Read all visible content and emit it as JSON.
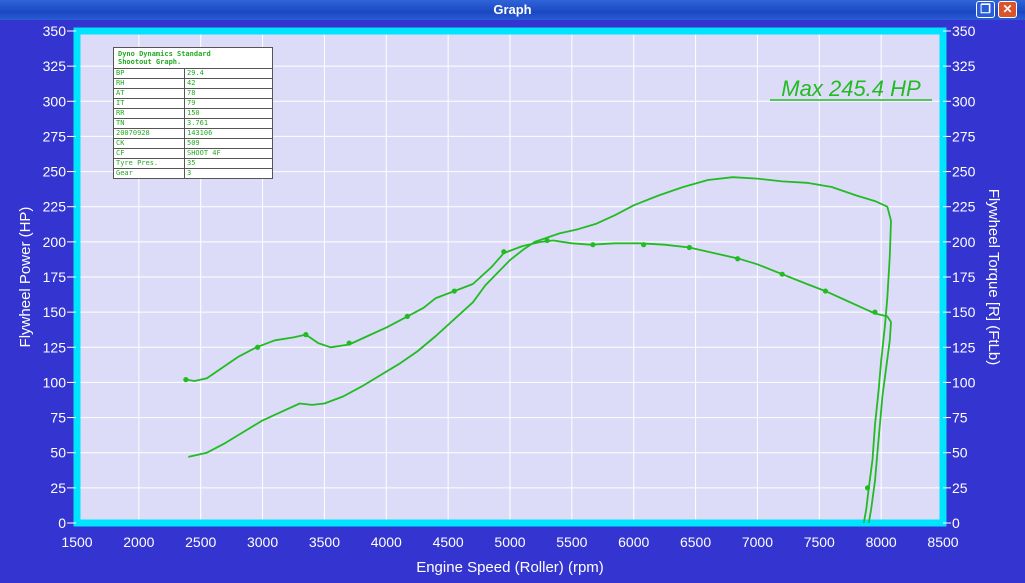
{
  "window": {
    "title": "Graph",
    "restore_icon": "restore-icon",
    "close_icon": "close-icon"
  },
  "colors": {
    "frame": "#3434d0",
    "plot_bg": "#dcdcf8",
    "plot_border": "#00e5ff",
    "curve": "#22bb22",
    "axis_text": "#ffffff",
    "title_bar": "#1f4fc9"
  },
  "annotation": "Max 245.4 HP",
  "info_table": {
    "header_line1": "Dyno Dynamics Standard",
    "header_line2": "Shootout Graph.",
    "rows": [
      {
        "key": "BP",
        "value": "29.4"
      },
      {
        "key": "RH",
        "value": "42"
      },
      {
        "key": "AT",
        "value": "78"
      },
      {
        "key": "IT",
        "value": "79"
      },
      {
        "key": "RR",
        "value": "150"
      },
      {
        "key": "TN",
        "value": "3.761"
      },
      {
        "key": "20070928",
        "value": "143106"
      },
      {
        "key": "CK",
        "value": "509"
      },
      {
        "key": "CF",
        "value": "SHOOT 4F"
      },
      {
        "key": "Tyre Pres.",
        "value": "35"
      },
      {
        "key": "Gear",
        "value": "3"
      }
    ]
  },
  "chart_data": {
    "type": "line",
    "xlabel": "Engine Speed (Roller) (rpm)",
    "ylabel": "Flywheel Power (HP)",
    "y2label": "Flywheel Torque [R] (FtLb)",
    "xlim": [
      1500,
      8500
    ],
    "ylim": [
      0,
      350
    ],
    "y2lim": [
      0,
      350
    ],
    "x_ticks": [
      "1500",
      "2000",
      "2500",
      "3000",
      "3500",
      "4000",
      "4500",
      "5000",
      "5500",
      "6000",
      "6500",
      "7000",
      "7500",
      "8000",
      "8500"
    ],
    "y_ticks": [
      "0",
      "25",
      "50",
      "75",
      "100",
      "125",
      "150",
      "175",
      "200",
      "225",
      "250",
      "275",
      "300",
      "325",
      "350"
    ],
    "y2_ticks": [
      "0",
      "25",
      "50",
      "75",
      "100",
      "125",
      "150",
      "175",
      "200",
      "225",
      "250",
      "275",
      "300",
      "325",
      "350"
    ],
    "grid": true,
    "series": [
      {
        "values_xy": [
          [
            2400,
            47
          ],
          [
            2550,
            50
          ],
          [
            2700,
            57
          ],
          [
            2850,
            65
          ],
          [
            3000,
            73
          ],
          [
            3150,
            79
          ],
          [
            3300,
            85
          ],
          [
            3400,
            84
          ],
          [
            3500,
            85
          ],
          [
            3650,
            90
          ],
          [
            3800,
            97
          ],
          [
            3950,
            105
          ],
          [
            4100,
            113
          ],
          [
            4250,
            122
          ],
          [
            4400,
            133
          ],
          [
            4550,
            145
          ],
          [
            4700,
            157
          ],
          [
            4800,
            169
          ],
          [
            4900,
            178
          ],
          [
            5000,
            187
          ],
          [
            5100,
            194
          ],
          [
            5200,
            200
          ],
          [
            5300,
            203
          ],
          [
            5400,
            206
          ],
          [
            5550,
            209
          ],
          [
            5700,
            213
          ],
          [
            5850,
            219
          ],
          [
            6000,
            226
          ],
          [
            6200,
            233
          ],
          [
            6400,
            239
          ],
          [
            6600,
            244
          ],
          [
            6800,
            246
          ],
          [
            7000,
            245
          ],
          [
            7200,
            243
          ],
          [
            7400,
            242
          ],
          [
            7600,
            239
          ],
          [
            7800,
            233
          ],
          [
            7950,
            229
          ],
          [
            8050,
            225
          ],
          [
            8080,
            215
          ],
          [
            8070,
            190
          ],
          [
            8050,
            160
          ],
          [
            8030,
            140
          ],
          [
            8000,
            115
          ],
          [
            7980,
            95
          ],
          [
            7950,
            70
          ],
          [
            7930,
            45
          ],
          [
            7900,
            25
          ],
          [
            7880,
            10
          ],
          [
            7860,
            0
          ]
        ],
        "markers": []
      },
      {
        "values_xy": [
          [
            2380,
            102
          ],
          [
            2450,
            101
          ],
          [
            2550,
            103
          ],
          [
            2650,
            109
          ],
          [
            2800,
            118
          ],
          [
            2950,
            125
          ],
          [
            3100,
            130
          ],
          [
            3250,
            132
          ],
          [
            3350,
            134
          ],
          [
            3450,
            128
          ],
          [
            3550,
            125
          ],
          [
            3700,
            127
          ],
          [
            3850,
            133
          ],
          [
            4000,
            139
          ],
          [
            4150,
            146
          ],
          [
            4300,
            153
          ],
          [
            4400,
            160
          ],
          [
            4550,
            165
          ],
          [
            4700,
            170
          ],
          [
            4850,
            182
          ],
          [
            4950,
            192
          ],
          [
            5100,
            197
          ],
          [
            5250,
            200
          ],
          [
            5350,
            201
          ],
          [
            5500,
            199
          ],
          [
            5650,
            198
          ],
          [
            5850,
            199
          ],
          [
            6050,
            199
          ],
          [
            6250,
            198
          ],
          [
            6450,
            196
          ],
          [
            6650,
            192
          ],
          [
            6850,
            188
          ],
          [
            7000,
            184
          ],
          [
            7200,
            177
          ],
          [
            7400,
            170
          ],
          [
            7550,
            165
          ],
          [
            7700,
            159
          ],
          [
            7850,
            153
          ],
          [
            7950,
            149
          ],
          [
            8050,
            147
          ],
          [
            8080,
            143
          ],
          [
            8070,
            130
          ],
          [
            8040,
            110
          ],
          [
            8010,
            90
          ],
          [
            7990,
            70
          ],
          [
            7970,
            50
          ],
          [
            7950,
            30
          ],
          [
            7920,
            10
          ],
          [
            7900,
            0
          ]
        ],
        "markers": [
          [
            2380,
            102
          ],
          [
            2960,
            125
          ],
          [
            3350,
            134
          ],
          [
            3700,
            128
          ],
          [
            4170,
            147
          ],
          [
            4550,
            165
          ],
          [
            4950,
            193
          ],
          [
            5300,
            201
          ],
          [
            5670,
            198
          ],
          [
            6080,
            198
          ],
          [
            6450,
            196
          ],
          [
            6840,
            188
          ],
          [
            7200,
            177
          ],
          [
            7550,
            165
          ],
          [
            7950,
            150
          ],
          [
            7890,
            25
          ]
        ]
      }
    ]
  }
}
